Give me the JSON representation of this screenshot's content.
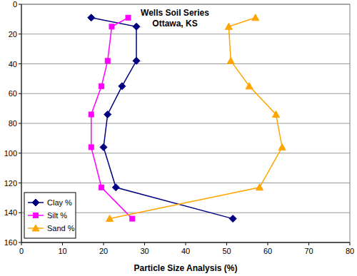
{
  "chart_data": {
    "type": "line",
    "title": "Wells Soil Series",
    "subtitle": "Ottawa, KS",
    "x_label": "Particle Size Analysis (%)",
    "xlim": [
      0,
      80
    ],
    "xticks": [
      0,
      10,
      20,
      30,
      40,
      50,
      60,
      70,
      80
    ],
    "ylim": [
      160,
      0
    ],
    "yticks": [
      0,
      20,
      40,
      60,
      80,
      100,
      120,
      140,
      160
    ],
    "grid": true,
    "legend": "lower left",
    "series": [
      {
        "name": "Clay %",
        "color": "#000080",
        "marker": "diamond",
        "x": [
          17,
          28,
          28,
          24.5,
          21,
          20,
          23,
          51.5
        ],
        "values": [
          9,
          15,
          38,
          55,
          74,
          96,
          123,
          144
        ]
      },
      {
        "name": "Silt %",
        "color": "#ff00ff",
        "marker": "square",
        "x": [
          26,
          22,
          21,
          19.5,
          17,
          17,
          19.5,
          27
        ],
        "values": [
          9,
          15,
          38,
          55,
          74,
          96,
          123,
          144
        ]
      },
      {
        "name": "Sand %",
        "color": "#ffa500",
        "marker": "triangle",
        "x": [
          57,
          50.5,
          51,
          55.5,
          62,
          63.5,
          58,
          21.5
        ],
        "values": [
          9,
          15,
          38,
          55,
          74,
          96,
          123,
          144
        ]
      }
    ]
  }
}
